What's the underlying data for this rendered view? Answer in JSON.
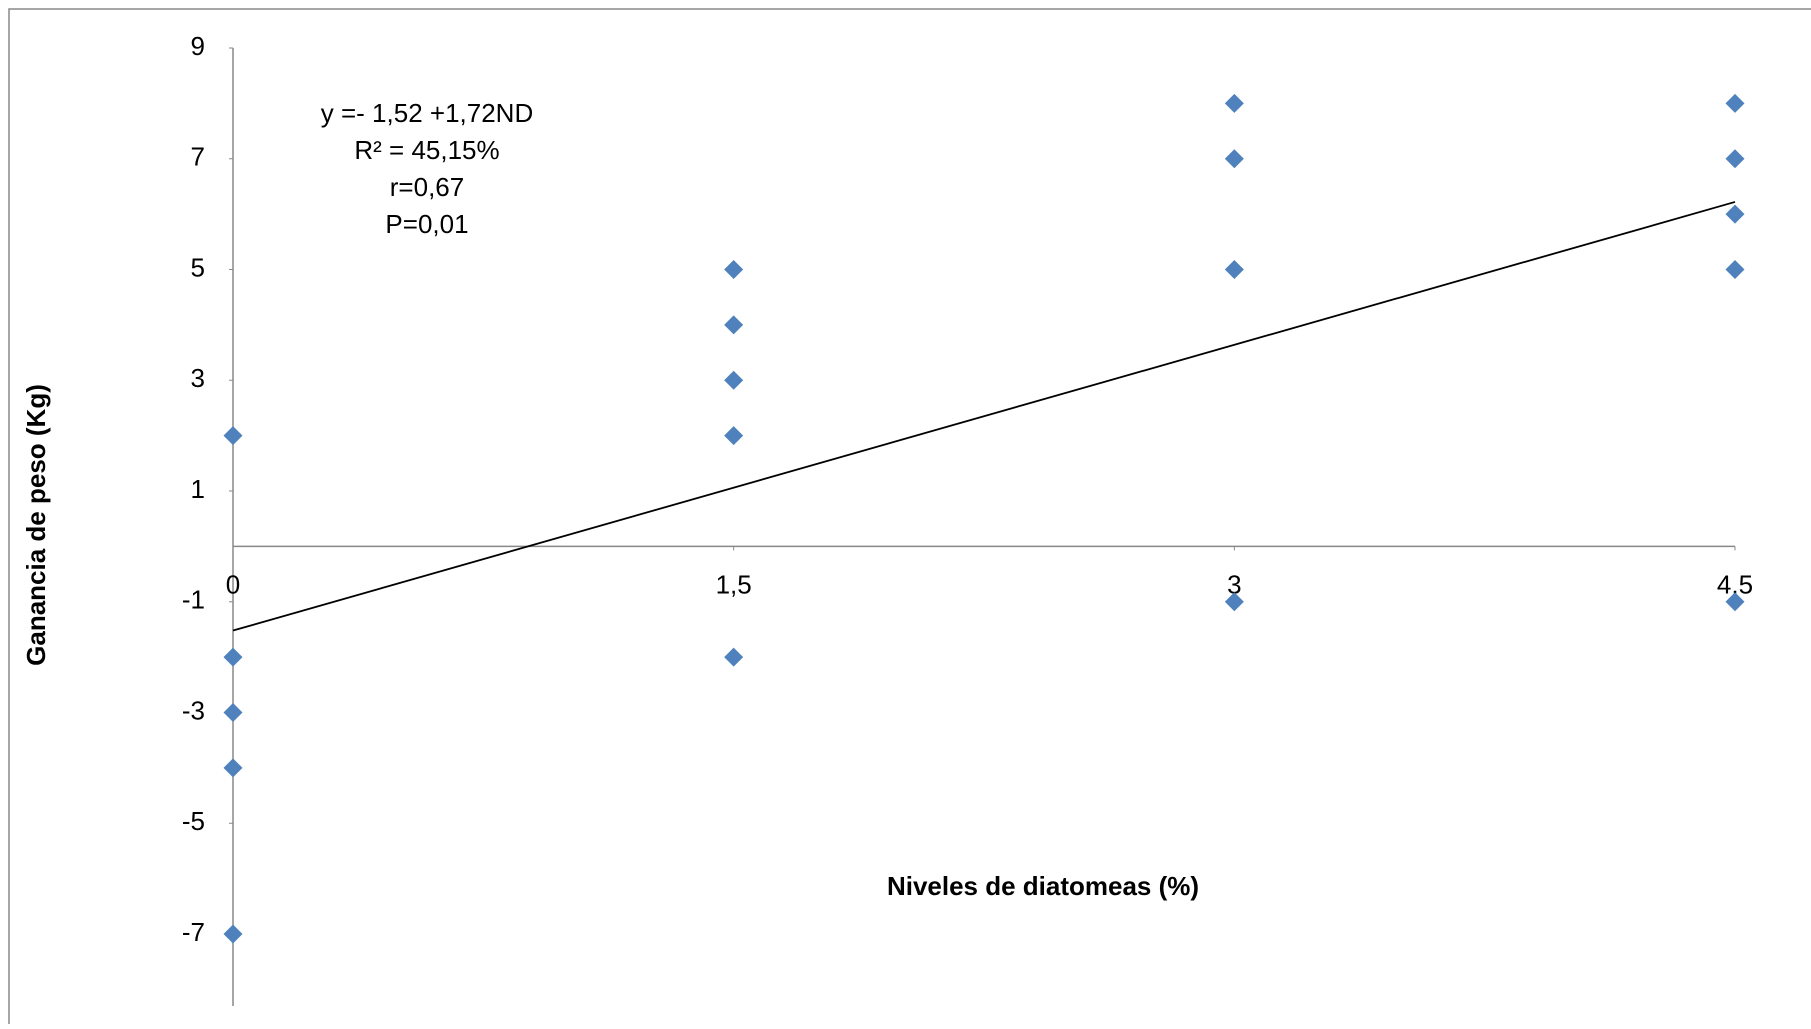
{
  "chart_data": {
    "type": "scatter",
    "x_label": "Niveles de diatomeas (%)",
    "y_label": "Ganancia de peso (Kg)",
    "annotation": [
      "y =- 1,52 +1,72ND",
      "R² = 45,15%",
      "r=0,67",
      "P=0,01"
    ],
    "x": [
      0,
      0,
      0,
      0,
      0,
      1.5,
      1.5,
      1.5,
      1.5,
      1.5,
      3,
      3,
      3,
      3,
      4.5,
      4.5,
      4.5,
      4.5,
      4.5
    ],
    "values": [
      2,
      -2,
      -3,
      -4,
      -7,
      5,
      4,
      3,
      2,
      -2,
      8,
      7,
      5,
      -1,
      8,
      7,
      6,
      5,
      -1
    ],
    "color": "#4f81bd",
    "trendline": {
      "x": [
        0,
        4.5
      ],
      "values": [
        -1.52,
        6.22
      ],
      "color": "#000000"
    },
    "xlim": [
      0,
      4.5
    ],
    "xticks": [
      0,
      {
        "value": 1.5,
        "label": "1,5"
      },
      3,
      {
        "value": 4.5,
        "label": "4,5"
      }
    ],
    "ylim": [
      -8.3,
      9
    ],
    "yticks": [
      9,
      7,
      5,
      3,
      1,
      -1,
      -3,
      -5,
      -7
    ],
    "grid": false
  }
}
